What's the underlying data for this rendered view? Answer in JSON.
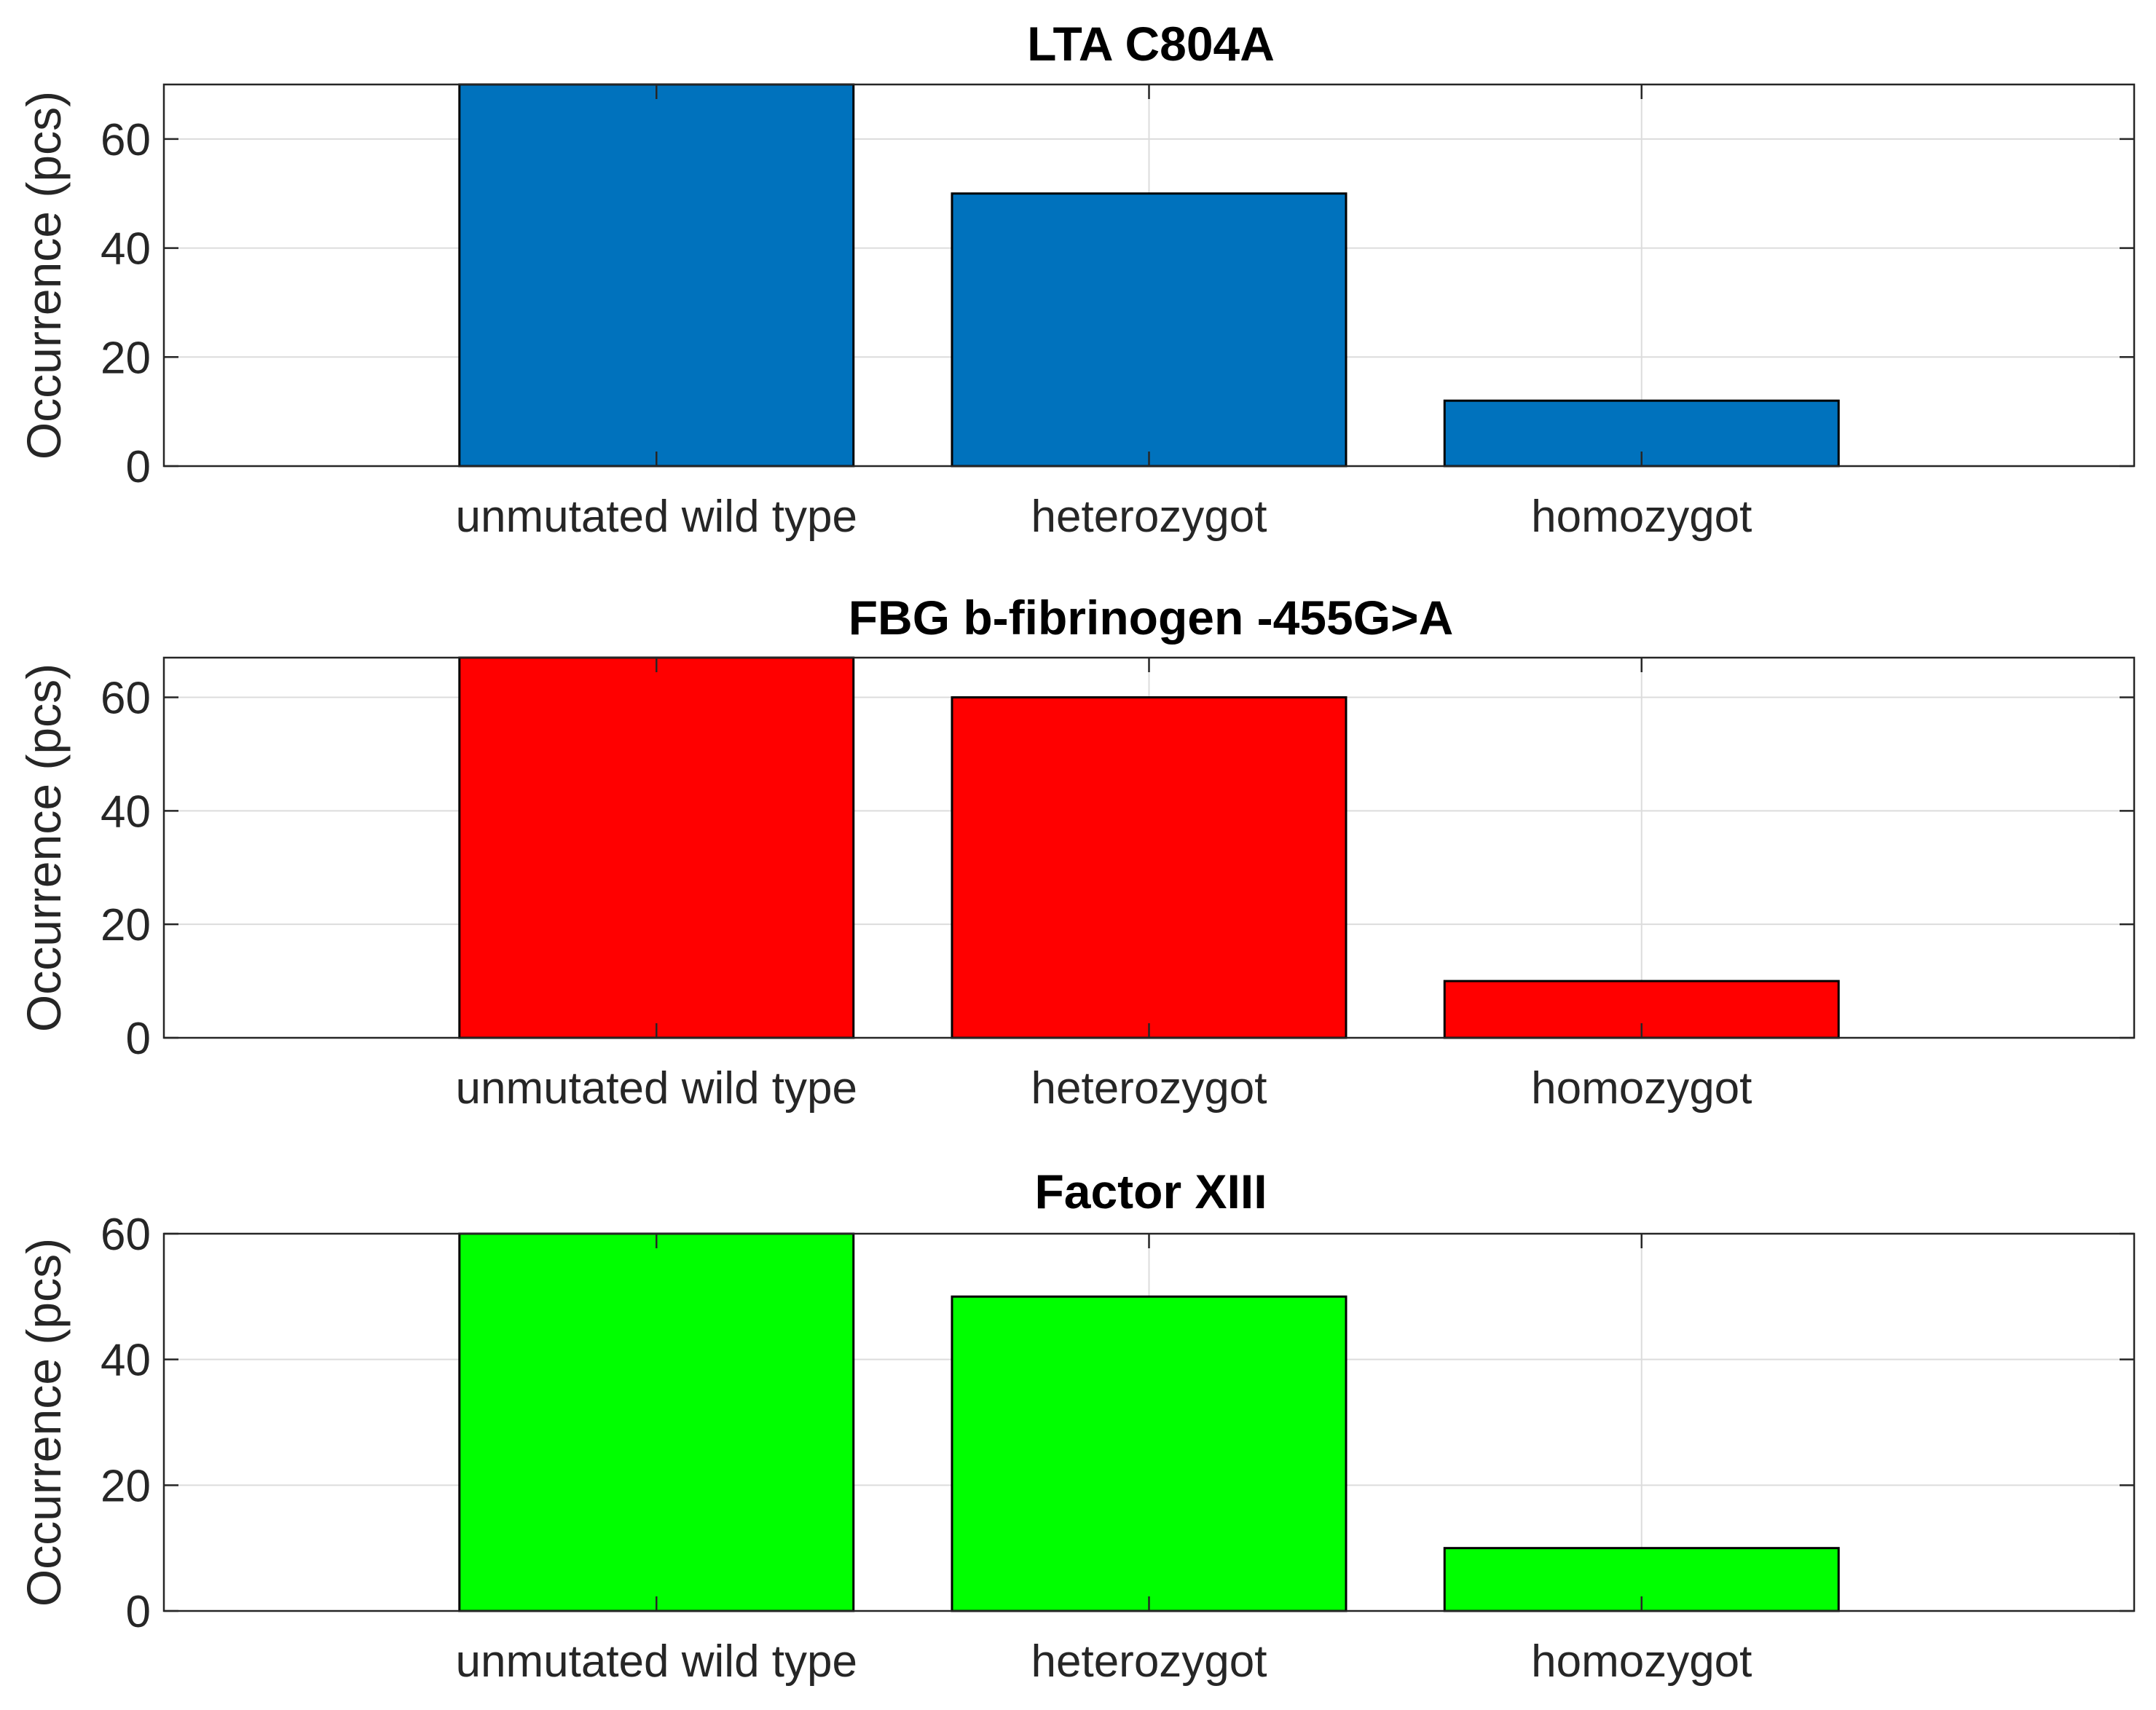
{
  "chart_data": [
    {
      "type": "bar",
      "title": "LTA C804A",
      "ylabel": "Occurrence (pcs)",
      "xlabel": "",
      "categories": [
        "unmutated wild type",
        "heterozygot",
        "homozygot"
      ],
      "values": [
        70,
        50,
        12
      ],
      "ylim": [
        0,
        70
      ],
      "yticks": [
        0,
        20,
        40,
        60
      ],
      "color": "#0072BD",
      "grid": true
    },
    {
      "type": "bar",
      "title": "FBG b-fibrinogen -455G>A",
      "ylabel": "Occurrence (pcs)",
      "xlabel": "",
      "categories": [
        "unmutated wild type",
        "heterozygot",
        "homozygot"
      ],
      "values": [
        67,
        60,
        10
      ],
      "ylim": [
        0,
        67
      ],
      "yticks": [
        0,
        20,
        40,
        60
      ],
      "color": "#FF0000",
      "grid": true
    },
    {
      "type": "bar",
      "title": "Factor XIII",
      "ylabel": "Occurrence (pcs)",
      "xlabel": "",
      "categories": [
        "unmutated wild type",
        "heterozygot",
        "homozygot"
      ],
      "values": [
        60,
        50,
        10
      ],
      "ylim": [
        0,
        60
      ],
      "yticks": [
        0,
        20,
        40,
        60
      ],
      "color": "#00FF00",
      "grid": true
    }
  ]
}
